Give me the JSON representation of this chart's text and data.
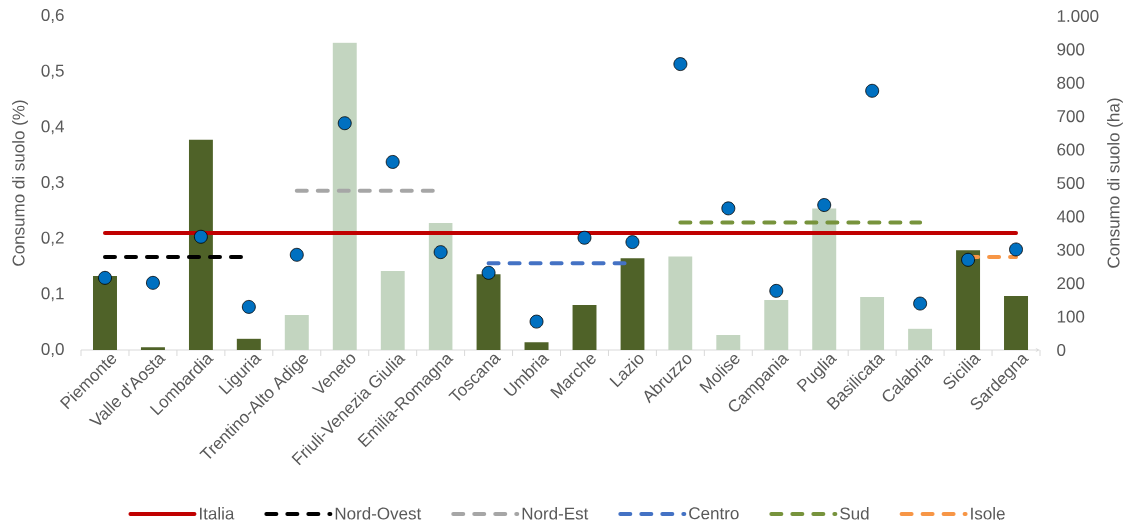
{
  "chart_data": {
    "type": "bar",
    "categories": [
      "Piemonte",
      "Valle d'Aosta",
      "Lombardia",
      "Liguria",
      "Trentino-Alto Adige",
      "Veneto",
      "Friuli-Venezia Giulia",
      "Emilia-Romagna",
      "Toscana",
      "Umbria",
      "Marche",
      "Lazio",
      "Abruzzo",
      "Molise",
      "Campania",
      "Puglia",
      "Basilicata",
      "Calabria",
      "Sicilia",
      "Sardegna"
    ],
    "ylabel": "Consumo di suolo (%)",
    "y2label": "Consumo di suolo (ha)",
    "ylim": [
      0,
      0.6
    ],
    "yticks": [
      {
        "value": 0,
        "label": "0,0"
      },
      {
        "value": 0.1,
        "label": "0,1"
      },
      {
        "value": 0.2,
        "label": "0,2"
      },
      {
        "value": 0.3,
        "label": "0,3"
      },
      {
        "value": 0.4,
        "label": "0,4"
      },
      {
        "value": 0.5,
        "label": "0,5"
      },
      {
        "value": 0.6,
        "label": "0,6"
      }
    ],
    "y2lim": [
      0,
      1000
    ],
    "y2ticks": [
      0,
      100,
      200,
      300,
      400,
      500,
      600,
      700,
      800,
      900,
      {
        "value": 1000,
        "label": "1.000"
      }
    ],
    "legend": "bottom",
    "series": [
      {
        "values": [
          0.133,
          0.005,
          0.378,
          0.02,
          0.063,
          0.552,
          0.142,
          0.228,
          0.136,
          0.014,
          0.081,
          0.165,
          0.168,
          0.027,
          0.09,
          0.254,
          0.095,
          0.038,
          0.179,
          0.097
        ],
        "colors": [
          "#4f6228",
          "#4f6228",
          "#4f6228",
          "#4f6228",
          "#c3d5c0",
          "#c3d5c0",
          "#c3d5c0",
          "#c3d5c0",
          "#4f6228",
          "#4f6228",
          "#4f6228",
          "#4f6228",
          "#c3d5c0",
          "#c3d5c0",
          "#c3d5c0",
          "#c3d5c0",
          "#c3d5c0",
          "#c3d5c0",
          "#4f6228",
          "#4f6228"
        ]
      },
      {
        "type": "line",
        "name": "Italia",
        "color": "#c00000",
        "line_style": "solid",
        "values": [
          0.21,
          0.21,
          0.21,
          0.21,
          0.21,
          0.21,
          0.21,
          0.21,
          0.21,
          0.21,
          0.21,
          0.21,
          0.21,
          0.21,
          0.21,
          0.21,
          0.21,
          0.21,
          0.21,
          0.21
        ]
      },
      {
        "type": "line",
        "name": "Nord-Ovest",
        "color": "#000000",
        "line_style": "dashed",
        "values": [
          0.167,
          0.167,
          0.167,
          0.167,
          null,
          null,
          null,
          null,
          null,
          null,
          null,
          null,
          null,
          null,
          null,
          null,
          null,
          null,
          null,
          null
        ]
      },
      {
        "type": "line",
        "name": "Nord-Est",
        "color": "#a6a6a6",
        "line_style": "dashed",
        "values": [
          null,
          null,
          null,
          null,
          0.286,
          0.286,
          0.286,
          0.286,
          null,
          null,
          null,
          null,
          null,
          null,
          null,
          null,
          null,
          null,
          null,
          null
        ]
      },
      {
        "type": "line",
        "name": "Centro",
        "color": "#4472c4",
        "line_style": "dashed",
        "values": [
          null,
          null,
          null,
          null,
          null,
          null,
          null,
          null,
          0.156,
          0.156,
          0.156,
          0.156,
          null,
          null,
          null,
          null,
          null,
          null,
          null,
          null
        ]
      },
      {
        "type": "line",
        "name": "Sud",
        "color": "#77933c",
        "line_style": "dashed",
        "values": [
          null,
          null,
          null,
          null,
          null,
          null,
          null,
          null,
          null,
          null,
          null,
          null,
          0.229,
          0.229,
          0.229,
          0.229,
          0.229,
          0.229,
          null,
          null
        ]
      },
      {
        "type": "line",
        "name": "Isole",
        "color": "#f79646",
        "line_style": "dashed",
        "values": [
          null,
          null,
          null,
          null,
          null,
          null,
          null,
          null,
          null,
          null,
          null,
          null,
          null,
          null,
          null,
          null,
          null,
          null,
          0.167,
          0.167
        ]
      },
      {
        "type": "scatter",
        "axis": "y2",
        "marker": "circle",
        "color": "#0070c0",
        "values": [
          216,
          201,
          339,
          129,
          285,
          679,
          563,
          293,
          231,
          85,
          336,
          323,
          856,
          424,
          177,
          434,
          776,
          139,
          270,
          301
        ]
      }
    ]
  }
}
